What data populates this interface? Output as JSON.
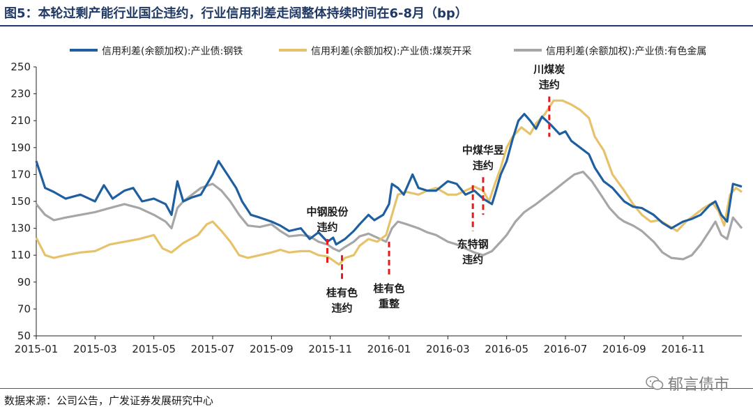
{
  "figure": {
    "title": "图5：本轮过剩产能行业国企违约，行业信用利差走阔整体持续时间在6-8月（bp）",
    "source": "数据来源：公司公告，广发证券发展研究中心",
    "watermark": "郁言债市"
  },
  "chart_data": {
    "type": "line",
    "title": "",
    "xlabel": "",
    "ylabel": "",
    "ylim": [
      50,
      250
    ],
    "yticks": [
      50,
      70,
      90,
      110,
      130,
      150,
      170,
      190,
      210,
      230,
      250
    ],
    "xlim": [
      0,
      24
    ],
    "xticks": [
      {
        "x": 0,
        "label": "2015-01"
      },
      {
        "x": 2,
        "label": "2015-03"
      },
      {
        "x": 4,
        "label": "2015-05"
      },
      {
        "x": 6,
        "label": "2015-07"
      },
      {
        "x": 8,
        "label": "2015-09"
      },
      {
        "x": 10,
        "label": "2015-11"
      },
      {
        "x": 12,
        "label": "2016-01"
      },
      {
        "x": 14,
        "label": "2016-03"
      },
      {
        "x": 16,
        "label": "2016-05"
      },
      {
        "x": 18,
        "label": "2016-07"
      },
      {
        "x": 20,
        "label": "2016-09"
      },
      {
        "x": 22,
        "label": "2016-11"
      }
    ],
    "legend_position": "top",
    "series": [
      {
        "name": "信用利差(余额加权):产业债:钢铁",
        "color": "#1f5fa0",
        "points": [
          [
            0,
            180
          ],
          [
            0.3,
            160
          ],
          [
            0.6,
            157
          ],
          [
            1,
            152
          ],
          [
            1.5,
            155
          ],
          [
            2,
            150
          ],
          [
            2.3,
            162
          ],
          [
            2.6,
            152
          ],
          [
            3,
            158
          ],
          [
            3.3,
            160
          ],
          [
            3.6,
            150
          ],
          [
            4,
            152
          ],
          [
            4.4,
            148
          ],
          [
            4.6,
            140
          ],
          [
            4.8,
            165
          ],
          [
            5,
            150
          ],
          [
            5.3,
            153
          ],
          [
            5.6,
            155
          ],
          [
            6,
            170
          ],
          [
            6.2,
            180
          ],
          [
            6.5,
            170
          ],
          [
            6.8,
            160
          ],
          [
            7,
            150
          ],
          [
            7.3,
            140
          ],
          [
            7.6,
            138
          ],
          [
            8,
            135
          ],
          [
            8.3,
            132
          ],
          [
            8.6,
            128
          ],
          [
            9,
            130
          ],
          [
            9.3,
            122
          ],
          [
            9.6,
            127
          ],
          [
            9.9,
            120
          ],
          [
            10.1,
            123
          ],
          [
            10.2,
            118
          ],
          [
            10.5,
            122
          ],
          [
            10.8,
            128
          ],
          [
            11,
            133
          ],
          [
            11.3,
            140
          ],
          [
            11.5,
            136
          ],
          [
            11.8,
            140
          ],
          [
            12,
            148
          ],
          [
            12.1,
            163
          ],
          [
            12.3,
            160
          ],
          [
            12.5,
            155
          ],
          [
            12.8,
            170
          ],
          [
            13,
            160
          ],
          [
            13.3,
            158
          ],
          [
            13.6,
            158
          ],
          [
            14,
            165
          ],
          [
            14.3,
            163
          ],
          [
            14.6,
            155
          ],
          [
            14.9,
            158
          ],
          [
            15.2,
            152
          ],
          [
            15.5,
            148
          ],
          [
            15.6,
            155
          ],
          [
            15.8,
            170
          ],
          [
            16,
            180
          ],
          [
            16.2,
            196
          ],
          [
            16.4,
            210
          ],
          [
            16.6,
            215
          ],
          [
            16.8,
            210
          ],
          [
            17,
            204
          ],
          [
            17.2,
            213
          ],
          [
            17.5,
            207
          ],
          [
            17.8,
            200
          ],
          [
            18,
            202
          ],
          [
            18.2,
            195
          ],
          [
            18.5,
            190
          ],
          [
            18.8,
            185
          ],
          [
            19,
            175
          ],
          [
            19.3,
            165
          ],
          [
            19.6,
            160
          ],
          [
            20,
            150
          ],
          [
            20.3,
            146
          ],
          [
            20.6,
            145
          ],
          [
            21,
            140
          ],
          [
            21.3,
            134
          ],
          [
            21.6,
            130
          ],
          [
            22,
            135
          ],
          [
            22.3,
            137
          ],
          [
            22.6,
            140
          ],
          [
            22.9,
            147
          ],
          [
            23.1,
            150
          ],
          [
            23.3,
            140
          ],
          [
            23.5,
            135
          ],
          [
            23.7,
            163
          ],
          [
            24,
            161
          ]
        ]
      },
      {
        "name": "信用利差(余额加权):产业债:煤炭开采",
        "color": "#e6c36b",
        "points": [
          [
            0,
            123
          ],
          [
            0.3,
            110
          ],
          [
            0.6,
            108
          ],
          [
            1,
            110
          ],
          [
            1.5,
            112
          ],
          [
            2,
            113
          ],
          [
            2.5,
            118
          ],
          [
            3,
            120
          ],
          [
            3.5,
            122
          ],
          [
            4,
            125
          ],
          [
            4.3,
            115
          ],
          [
            4.6,
            112
          ],
          [
            5,
            119
          ],
          [
            5.5,
            125
          ],
          [
            5.8,
            133
          ],
          [
            6,
            135
          ],
          [
            6.3,
            128
          ],
          [
            6.6,
            120
          ],
          [
            6.9,
            110
          ],
          [
            7.2,
            108
          ],
          [
            7.6,
            110
          ],
          [
            8,
            112
          ],
          [
            8.3,
            114
          ],
          [
            8.6,
            112
          ],
          [
            9,
            113
          ],
          [
            9.3,
            113
          ],
          [
            9.6,
            110
          ],
          [
            9.9,
            109
          ],
          [
            10.1,
            106
          ],
          [
            10.3,
            103
          ],
          [
            10.5,
            108
          ],
          [
            10.8,
            110
          ],
          [
            11,
            117
          ],
          [
            11.3,
            122
          ],
          [
            11.6,
            120
          ],
          [
            11.9,
            125
          ],
          [
            12.1,
            140
          ],
          [
            12.3,
            155
          ],
          [
            12.6,
            157
          ],
          [
            13,
            155
          ],
          [
            13.3,
            158
          ],
          [
            13.6,
            160
          ],
          [
            14,
            155
          ],
          [
            14.3,
            155
          ],
          [
            14.6,
            158
          ],
          [
            14.9,
            161
          ],
          [
            15.2,
            158
          ],
          [
            15.4,
            150
          ],
          [
            15.6,
            163
          ],
          [
            15.8,
            175
          ],
          [
            16,
            190
          ],
          [
            16.2,
            198
          ],
          [
            16.5,
            205
          ],
          [
            16.8,
            200
          ],
          [
            17,
            208
          ],
          [
            17.3,
            215
          ],
          [
            17.6,
            225
          ],
          [
            17.9,
            225
          ],
          [
            18.2,
            222
          ],
          [
            18.5,
            218
          ],
          [
            18.8,
            212
          ],
          [
            19,
            198
          ],
          [
            19.3,
            188
          ],
          [
            19.6,
            170
          ],
          [
            20,
            158
          ],
          [
            20.3,
            148
          ],
          [
            20.6,
            140
          ],
          [
            20.9,
            135
          ],
          [
            21.2,
            136
          ],
          [
            21.5,
            132
          ],
          [
            21.8,
            128
          ],
          [
            22.1,
            135
          ],
          [
            22.4,
            140
          ],
          [
            22.7,
            145
          ],
          [
            23,
            149
          ],
          [
            23.2,
            143
          ],
          [
            23.4,
            132
          ],
          [
            23.6,
            155
          ],
          [
            23.8,
            160
          ],
          [
            24,
            157
          ]
        ]
      },
      {
        "name": "信用利差(余额加权):产业债:有色金属",
        "color": "#a6a6a6",
        "points": [
          [
            0,
            148
          ],
          [
            0.3,
            140
          ],
          [
            0.6,
            136
          ],
          [
            1,
            138
          ],
          [
            1.5,
            140
          ],
          [
            2,
            142
          ],
          [
            2.5,
            145
          ],
          [
            3,
            148
          ],
          [
            3.5,
            145
          ],
          [
            4,
            140
          ],
          [
            4.4,
            135
          ],
          [
            4.6,
            130
          ],
          [
            4.8,
            145
          ],
          [
            5,
            150
          ],
          [
            5.3,
            155
          ],
          [
            5.6,
            160
          ],
          [
            6,
            163
          ],
          [
            6.3,
            158
          ],
          [
            6.6,
            150
          ],
          [
            6.9,
            140
          ],
          [
            7.2,
            132
          ],
          [
            7.6,
            131
          ],
          [
            8,
            133
          ],
          [
            8.3,
            128
          ],
          [
            8.6,
            124
          ],
          [
            9,
            125
          ],
          [
            9.3,
            124
          ],
          [
            9.6,
            120
          ],
          [
            9.9,
            118
          ],
          [
            10.1,
            115
          ],
          [
            10.3,
            113
          ],
          [
            10.5,
            116
          ],
          [
            10.8,
            120
          ],
          [
            11,
            124
          ],
          [
            11.3,
            126
          ],
          [
            11.6,
            123
          ],
          [
            11.9,
            120
          ],
          [
            12.1,
            130
          ],
          [
            12.3,
            135
          ],
          [
            12.6,
            133
          ],
          [
            13,
            130
          ],
          [
            13.3,
            127
          ],
          [
            13.6,
            125
          ],
          [
            14,
            120
          ],
          [
            14.3,
            118
          ],
          [
            14.6,
            115
          ],
          [
            14.9,
            112
          ],
          [
            15.2,
            110
          ],
          [
            15.5,
            113
          ],
          [
            15.8,
            120
          ],
          [
            16,
            125
          ],
          [
            16.3,
            135
          ],
          [
            16.6,
            142
          ],
          [
            17,
            148
          ],
          [
            17.3,
            153
          ],
          [
            17.6,
            158
          ],
          [
            18,
            165
          ],
          [
            18.3,
            170
          ],
          [
            18.6,
            172
          ],
          [
            18.9,
            165
          ],
          [
            19.2,
            155
          ],
          [
            19.5,
            145
          ],
          [
            19.8,
            138
          ],
          [
            20,
            135
          ],
          [
            20.3,
            132
          ],
          [
            20.6,
            128
          ],
          [
            21,
            120
          ],
          [
            21.3,
            112
          ],
          [
            21.6,
            108
          ],
          [
            22,
            107
          ],
          [
            22.3,
            110
          ],
          [
            22.6,
            118
          ],
          [
            22.9,
            128
          ],
          [
            23.1,
            135
          ],
          [
            23.3,
            125
          ],
          [
            23.5,
            122
          ],
          [
            23.7,
            138
          ],
          [
            24,
            130
          ]
        ]
      }
    ],
    "event_markers": [
      {
        "x": 9.9,
        "y_from": 102,
        "y_to": 122,
        "label_lines": [
          "中钢股份",
          "违约"
        ],
        "label_pos": "above"
      },
      {
        "x": 10.4,
        "y_from": 92,
        "y_to": 110,
        "label_lines": [
          "桂有色",
          "违约"
        ],
        "label_pos": "below"
      },
      {
        "x": 12.0,
        "y_from": 95,
        "y_to": 120,
        "label_lines": [
          "桂有色",
          "重整"
        ],
        "label_pos": "below"
      },
      {
        "x": 14.85,
        "y_from": 128,
        "y_to": 162,
        "label_lines": [
          "东特钢",
          "违约"
        ],
        "label_pos": "below"
      },
      {
        "x": 15.2,
        "y_from": 140,
        "y_to": 168,
        "label_lines": [
          "中煤华昱",
          "违约"
        ],
        "label_pos": "above"
      },
      {
        "x": 17.45,
        "y_from": 198,
        "y_to": 228,
        "label_lines": [
          "川煤炭",
          "违约"
        ],
        "label_pos": "above"
      }
    ]
  }
}
